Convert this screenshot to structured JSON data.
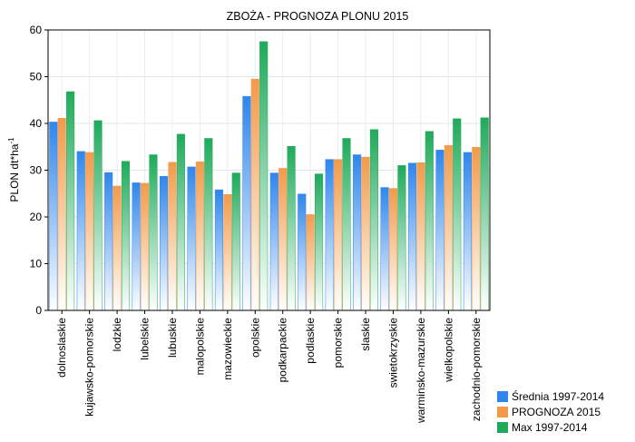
{
  "chart_data": {
    "type": "bar",
    "title": "ZBOŻA - PROGNOZA PLONU 2015",
    "ylabel_main": "PLON dt*ha",
    "ylabel_sup": "-1",
    "xlabel": "",
    "ylim": [
      0,
      60
    ],
    "yticks": [
      "0",
      "10",
      "20",
      "30",
      "40",
      "50",
      "60"
    ],
    "grid": true,
    "legend_position": "bottom-right",
    "categories": [
      "dolnoslaskie",
      "kujawsko-pomorskie",
      "lodzkie",
      "lubelskie",
      "lubuskie",
      "malopolskie",
      "mazowieckie",
      "opolskie",
      "podkarpackie",
      "podlaskie",
      "pomorskie",
      "slaskie",
      "swietokrzyskie",
      "warminsko-mazurskie",
      "wielkopolskie",
      "zachodnio-pomorskie"
    ],
    "series": [
      {
        "name": "Średnia 1997-2014",
        "color": "#2f86ec",
        "values": [
          40.3,
          34.0,
          29.5,
          27.3,
          28.7,
          30.7,
          25.8,
          45.8,
          29.4,
          24.9,
          32.3,
          33.3,
          26.3,
          31.5,
          34.3,
          33.8
        ]
      },
      {
        "name": "PROGNOZA 2015",
        "color": "#f39a4a",
        "values": [
          41.1,
          33.8,
          26.6,
          27.2,
          31.7,
          31.8,
          24.8,
          49.5,
          30.4,
          20.5,
          32.3,
          32.8,
          26.1,
          31.6,
          35.3,
          34.9
        ]
      },
      {
        "name": "Max 1997-2014",
        "color": "#1faa5a",
        "values": [
          46.8,
          40.6,
          31.9,
          33.3,
          37.7,
          36.8,
          29.4,
          57.5,
          35.1,
          29.2,
          36.8,
          38.7,
          31.0,
          38.3,
          41.0,
          41.2
        ]
      }
    ]
  }
}
